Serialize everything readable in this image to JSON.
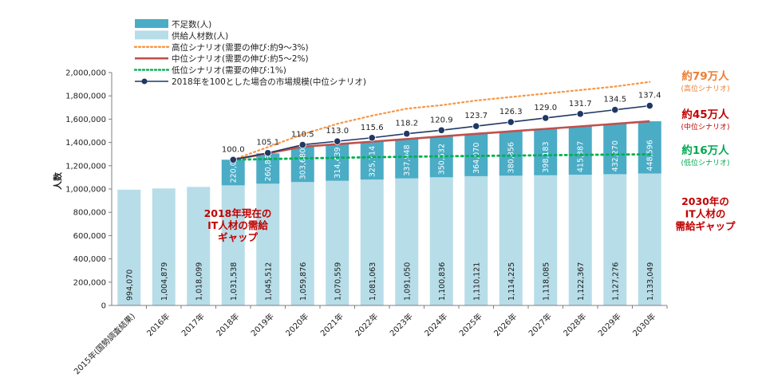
{
  "chart_data": {
    "type": "bar",
    "ylabel": "人数",
    "ylim": [
      0,
      2000000
    ],
    "yticks": [
      "0",
      "200,000",
      "400,000",
      "600,000",
      "800,000",
      "1,000,000",
      "1,200,000",
      "1,400,000",
      "1,600,000",
      "1,800,000",
      "2,000,000"
    ],
    "categories": [
      "2015年(国勢調査結果)",
      "2016年",
      "2017年",
      "2018年",
      "2019年",
      "2020年",
      "2021年",
      "2022年",
      "2023年",
      "2024年",
      "2025年",
      "2026年",
      "2027年",
      "2028年",
      "2029年",
      "2030年"
    ],
    "series": [
      {
        "name": "不足数(人)",
        "kind": "stacked-bar",
        "color": "#4bacc6",
        "values": [
          null,
          null,
          null,
          220000,
          260835,
          303680,
          314439,
          325714,
          337948,
          350532,
          364070,
          380856,
          398183,
          415387,
          432270,
          448596
        ],
        "labels": [
          "",
          "",
          "",
          "220,000",
          "260,835",
          "303,680",
          "314,439",
          "325,714",
          "337,948",
          "350,532",
          "364,070",
          "380,856",
          "398,183",
          "415,387",
          "432,270",
          "448,596"
        ]
      },
      {
        "name": "供給人材数(人)",
        "kind": "bar",
        "color": "#b7dde8",
        "values": [
          994070,
          1004879,
          1018099,
          1031538,
          1045512,
          1059876,
          1070559,
          1081063,
          1091050,
          1100836,
          1110121,
          1114225,
          1118085,
          1122367,
          1127276,
          1133049
        ],
        "labels": [
          "994,070",
          "1,004,879",
          "1,018,099",
          "1,031,538",
          "1,045,512",
          "1,059,876",
          "1,070,559",
          "1,081,063",
          "1,091,050",
          "1,100,836",
          "1,110,121",
          "1,114,225",
          "1,118,085",
          "1,122,367",
          "1,127,276",
          "1,133,049"
        ]
      },
      {
        "name": "高位シナリオ(需要の伸び:約9〜3%)",
        "kind": "line-dotted",
        "color": "#f79646",
        "values": [
          null,
          null,
          null,
          1251538,
          1360000,
          1470000,
          1560000,
          1630000,
          1690000,
          1720000,
          1760000,
          1790000,
          1820000,
          1850000,
          1880000,
          1920000
        ]
      },
      {
        "name": "中位シナリオ(需要の伸び:約5〜2%)",
        "kind": "line",
        "color": "#c0504d",
        "values": [
          null,
          null,
          null,
          1251538,
          1306347,
          1363556,
          1384998,
          1406777,
          1428998,
          1451368,
          1474191,
          1495081,
          1516268,
          1537754,
          1559546,
          1581645
        ]
      },
      {
        "name": "低位シナリオ(需要の伸び:1%)",
        "kind": "line-dotted",
        "color": "#00b050",
        "values": [
          null,
          null,
          null,
          1251538,
          1257000,
          1263000,
          1268000,
          1273000,
          1277000,
          1281000,
          1284000,
          1287000,
          1290000,
          1293000,
          1296000,
          1298000
        ]
      },
      {
        "name": "2018年を100とした場合の市場規模(中位シナリオ)",
        "kind": "line-markers",
        "color": "#1f3864",
        "values": [
          null,
          null,
          null,
          1251538,
          1310000,
          1380000,
          1410000,
          1440000,
          1475000,
          1505000,
          1540000,
          1575000,
          1610000,
          1645000,
          1680000,
          1715000
        ],
        "labels": [
          "",
          "",
          "",
          "100.0",
          "105.1",
          "110.5",
          "113.0",
          "115.6",
          "118.2",
          "120.9",
          "123.7",
          "126.3",
          "129.0",
          "131.7",
          "134.5",
          "137.4"
        ]
      }
    ],
    "annotations": {
      "left": [
        "2018年現在の",
        "IT人材の需給",
        "ギャップ"
      ],
      "right": [
        "2030年の",
        "IT人材の",
        "需給ギャップ"
      ],
      "high": {
        "main": "約79万人",
        "sub": "(高位シナリオ)"
      },
      "mid": {
        "main": "約45万人",
        "sub": "(中位シナリオ)"
      },
      "low": {
        "main": "約16万人",
        "sub": "(低位シナリオ)"
      }
    },
    "legend_position": "top-left",
    "grid": false
  }
}
